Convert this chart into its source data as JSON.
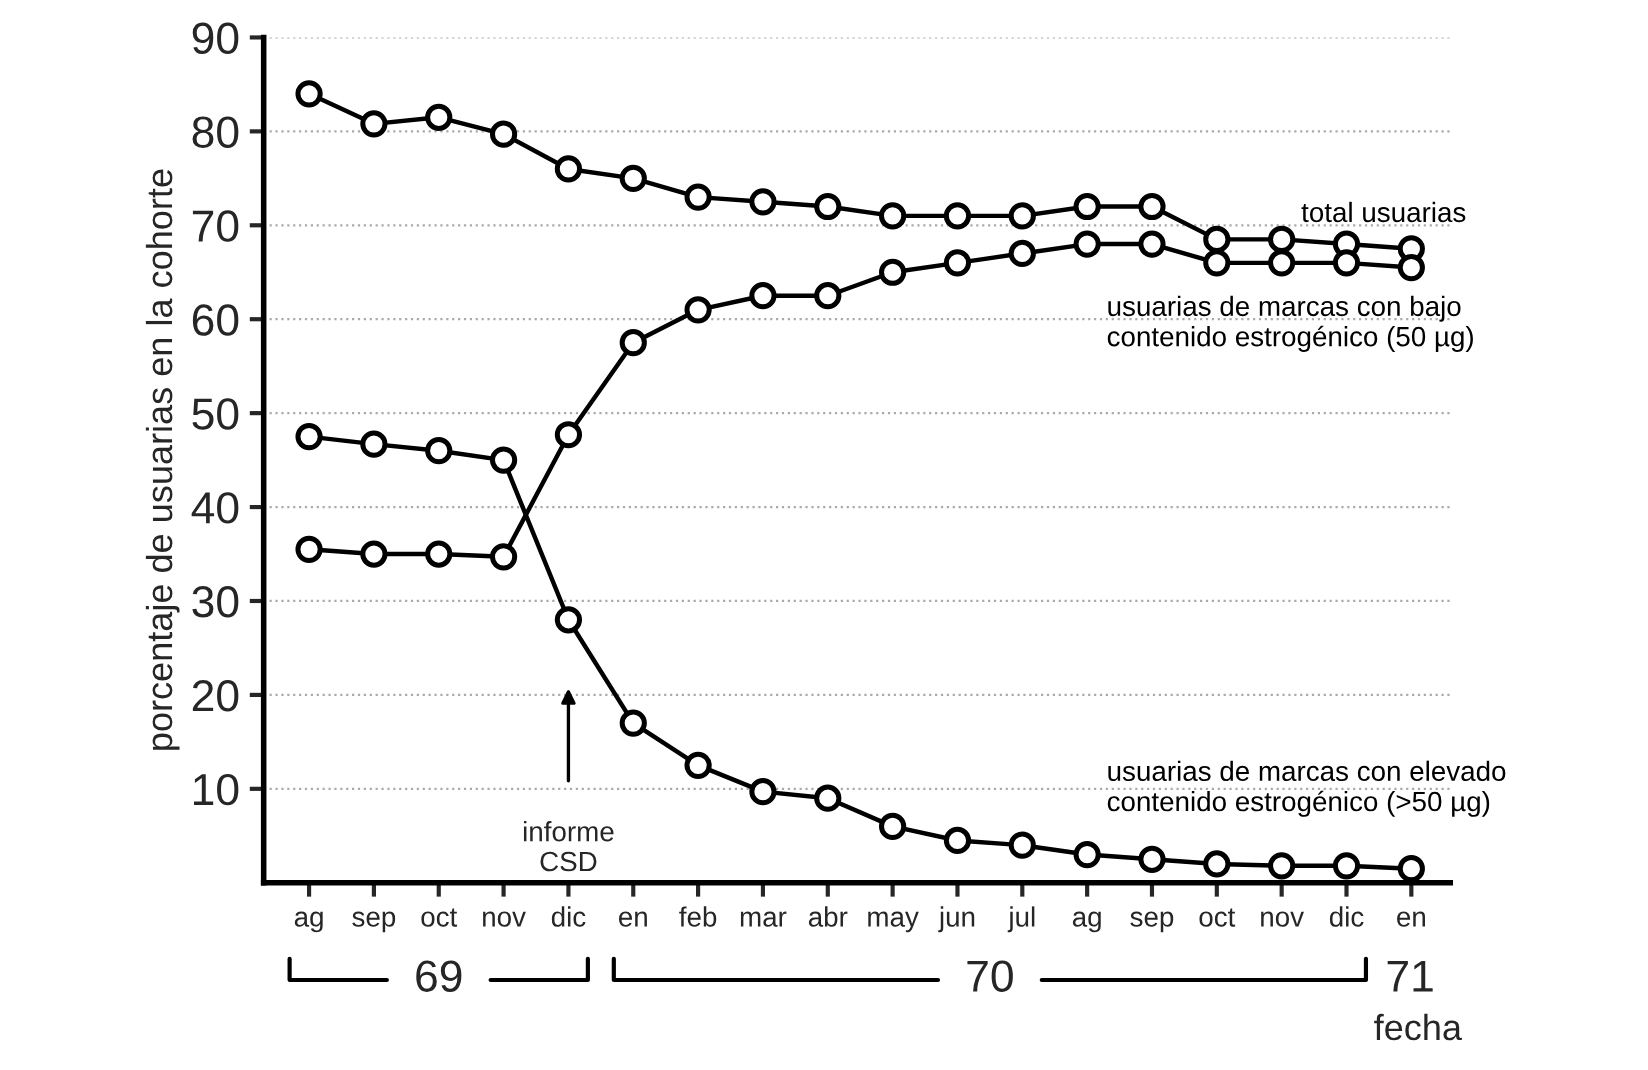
{
  "chart_data": {
    "type": "line",
    "ylabel": "porcentaje de usuarias en la cohorte",
    "xlabel": "fecha",
    "categories": [
      "ag",
      "sep",
      "oct",
      "nov",
      "dic",
      "en",
      "feb",
      "mar",
      "abr",
      "may",
      "jun",
      "jul",
      "ag",
      "sep",
      "oct",
      "nov",
      "dic",
      "en"
    ],
    "series": [
      {
        "name": "total usuarias",
        "color": "#000000",
        "values": [
          84,
          80.8,
          81.5,
          79.7,
          76,
          75,
          73,
          72.5,
          72,
          71,
          71,
          71,
          72,
          72,
          68.5,
          68.5,
          68,
          67.5
        ]
      },
      {
        "name": "usuarias de marcas con bajo\ncontenido estrogénico (50 µg)",
        "color": "#000000",
        "values": [
          35.5,
          35,
          35,
          34.7,
          47.7,
          57.5,
          61,
          62.5,
          62.5,
          65,
          66,
          67,
          68,
          68,
          66,
          66,
          66,
          65.5
        ]
      },
      {
        "name": "usuarias de marcas con elevado\ncontenido estrogénico (>50 µg)",
        "color": "#000000",
        "values": [
          47.5,
          46.7,
          46,
          45,
          28,
          17,
          12.5,
          9.7,
          9,
          6,
          4.5,
          4,
          3,
          2.5,
          2,
          1.8,
          1.8,
          1.5
        ]
      }
    ],
    "ylim": [
      0,
      90
    ],
    "yticks": [
      10,
      20,
      30,
      40,
      50,
      60,
      70,
      80,
      90
    ],
    "grid": "y",
    "marker": "circle",
    "line_style": "solid",
    "legend": false,
    "annotations": [
      "informe\nCSD",
      "69",
      "70",
      "71"
    ]
  }
}
